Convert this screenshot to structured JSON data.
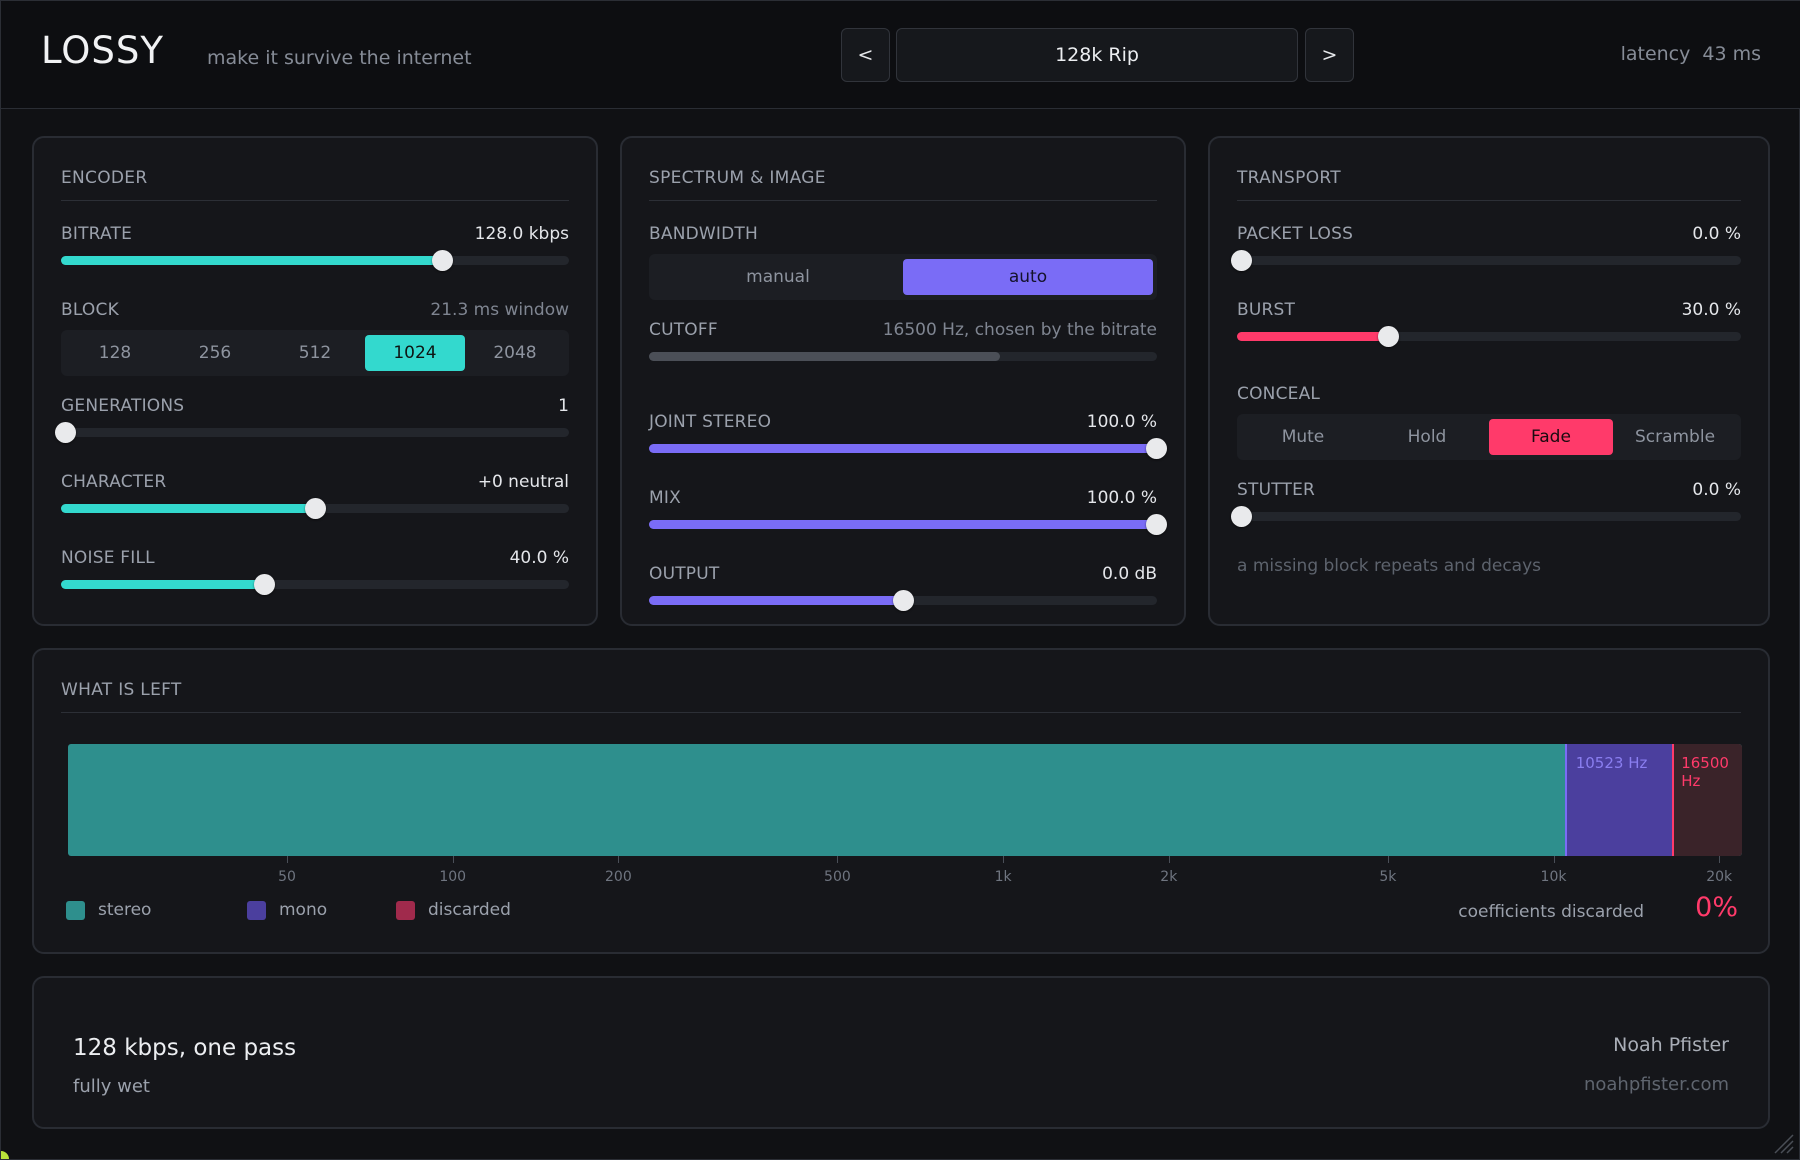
{
  "header": {
    "logo": "LOSSY",
    "tagline": "make it survive the internet",
    "prev_label": "<",
    "next_label": ">",
    "preset": "128k Rip",
    "latency_label": "latency",
    "latency_value": "43 ms"
  },
  "encoder": {
    "title": "ENCODER",
    "bitrate": {
      "label": "BITRATE",
      "value": "128.0 kbps",
      "fraction": 0.75
    },
    "block": {
      "label": "BLOCK",
      "note": "21.3 ms window",
      "options": [
        "128",
        "256",
        "512",
        "1024",
        "2048"
      ],
      "selected": "1024"
    },
    "generations": {
      "label": "GENERATIONS",
      "value": "1",
      "fraction": 0.0
    },
    "character": {
      "label": "CHARACTER",
      "value": "+0  neutral",
      "fraction": 0.5
    },
    "noise_fill": {
      "label": "NOISE FILL",
      "value": "40.0 %",
      "fraction": 0.4
    }
  },
  "spectrum": {
    "title": "SPECTRUM & IMAGE",
    "bandwidth": {
      "label": "BANDWIDTH",
      "options": [
        "manual",
        "auto"
      ],
      "selected": "auto"
    },
    "cutoff": {
      "label": "CUTOFF",
      "value": "16500 Hz, chosen by the bitrate",
      "fraction": 0.69
    },
    "joint_stereo": {
      "label": "JOINT STEREO",
      "value": "100.0 %",
      "fraction": 1.0
    },
    "mix": {
      "label": "MIX",
      "value": "100.0 %",
      "fraction": 1.0
    },
    "output": {
      "label": "OUTPUT",
      "value": "0.0 dB",
      "fraction": 0.5
    }
  },
  "transport": {
    "title": "TRANSPORT",
    "packet_loss": {
      "label": "PACKET LOSS",
      "value": "0.0 %",
      "fraction": 0.0
    },
    "burst": {
      "label": "BURST",
      "value": "30.0 %",
      "fraction": 0.3
    },
    "conceal": {
      "label": "CONCEAL",
      "options": [
        "Mute",
        "Hold",
        "Fade",
        "Scramble"
      ],
      "selected": "Fade"
    },
    "stutter": {
      "label": "STUTTER",
      "value": "0.0 %",
      "fraction": 0.0
    },
    "hint": "a missing block repeats and decays"
  },
  "what_is_left": {
    "title": "WHAT IS LEFT",
    "mono_label": "10523 Hz",
    "cutoff_label": "16500 Hz",
    "mono_hz": 10523,
    "cutoff_hz": 16500,
    "ticks": [
      "50",
      "100",
      "200",
      "500",
      "1k",
      "2k",
      "5k",
      "10k",
      "20k"
    ],
    "tick_hz": [
      50,
      100,
      200,
      500,
      1000,
      2000,
      5000,
      10000,
      20000
    ],
    "legend": [
      "stereo",
      "mono",
      "discarded"
    ],
    "discarded_label": "coefficients discarded",
    "discarded_pct": "0%"
  },
  "summary": {
    "main": "128 kbps, one pass",
    "sub": "fully wet",
    "author": "Noah Pfister",
    "site": "noahpfister.com"
  },
  "colors": {
    "teal": "#33d9ce",
    "purple": "#7a6cf6",
    "red": "#ff3a6a",
    "stereo": "#2e8f8d",
    "mono": "#4b3f9e",
    "discarded": "#a02a4c"
  }
}
